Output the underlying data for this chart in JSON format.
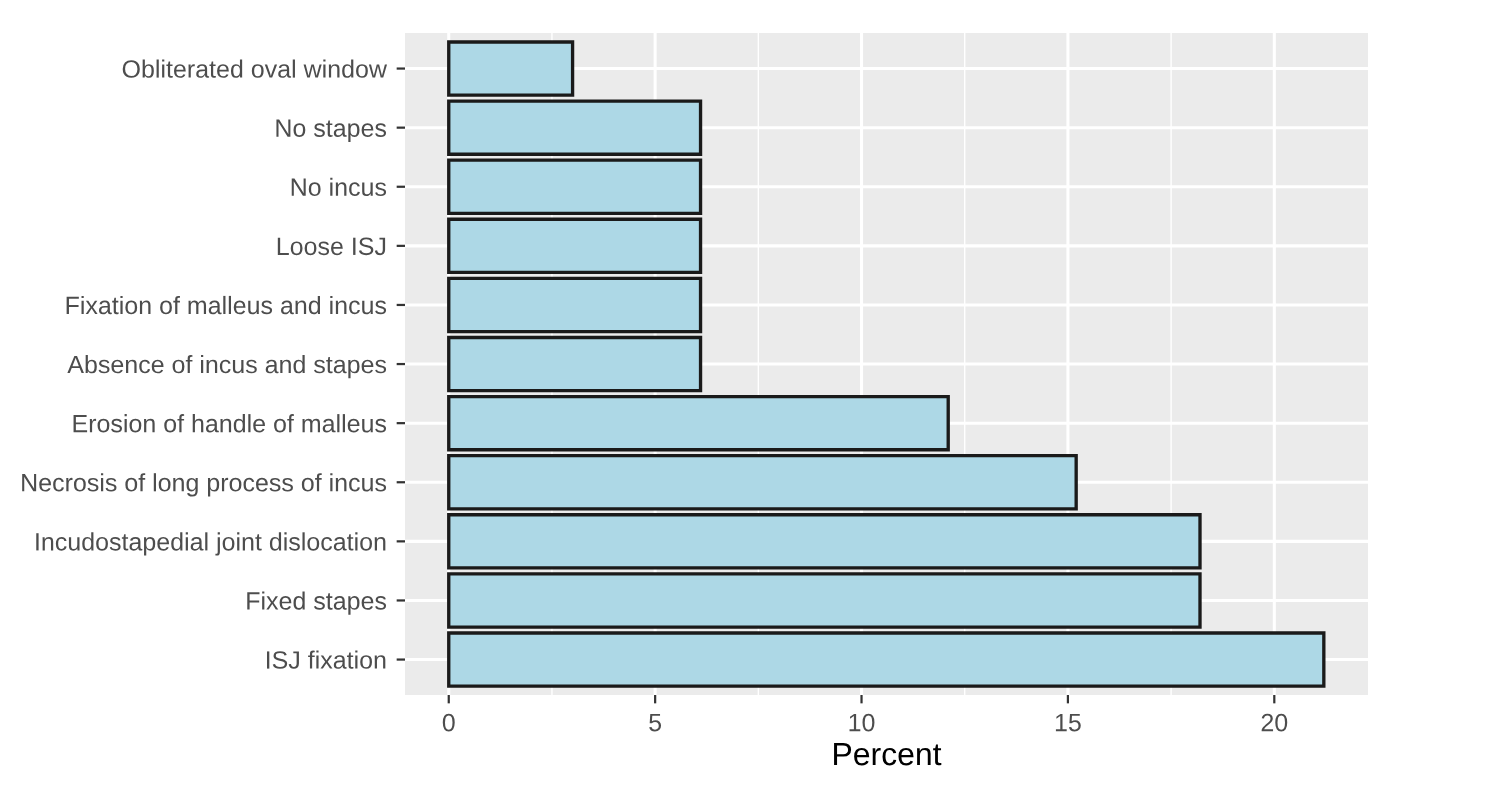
{
  "chart_data": {
    "type": "bar",
    "orientation": "horizontal",
    "xlabel": "Percent",
    "categories": [
      "Obliterated oval window",
      "No stapes",
      "No incus",
      "Loose ISJ",
      "Fixation of malleus and incus",
      "Absence of incus and stapes",
      "Erosion of handle of malleus",
      "Necrosis of long process of incus",
      "Incudostapedial joint dislocation",
      "Fixed stapes",
      "ISJ fixation"
    ],
    "values": [
      3.0,
      6.1,
      6.1,
      6.1,
      6.1,
      6.1,
      12.1,
      15.2,
      18.2,
      18.2,
      21.2
    ],
    "color": "#add8e6",
    "xlim": [
      -1.06,
      22.27
    ],
    "xticks": [
      0,
      5,
      10,
      15,
      20
    ],
    "grid": true
  }
}
